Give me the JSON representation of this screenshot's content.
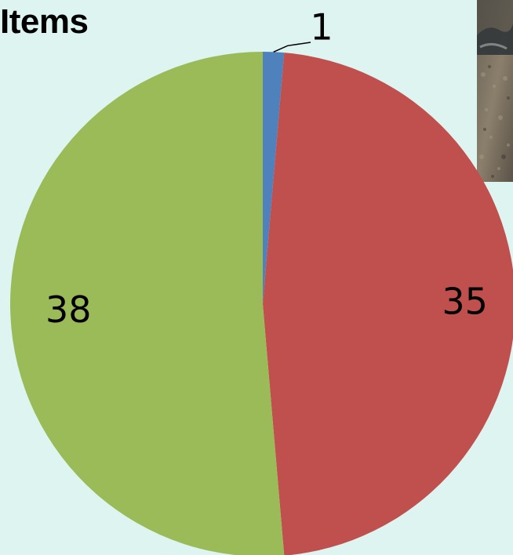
{
  "title": "Items",
  "chart_data": {
    "type": "pie",
    "title": "Items",
    "slices": [
      {
        "label": "1",
        "value": 1,
        "color": "#4f81bd"
      },
      {
        "label": "35",
        "value": 35,
        "color": "#c0504d"
      },
      {
        "label": "38",
        "value": 38,
        "color": "#9bbb59"
      }
    ],
    "start_angle_deg": 0,
    "direction": "clockwise",
    "legend": "none"
  }
}
